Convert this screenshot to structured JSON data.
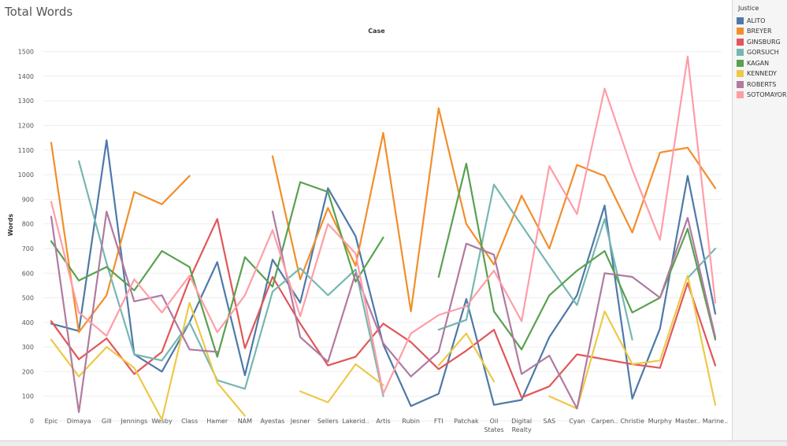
{
  "page_title": "Total Words",
  "legend": {
    "title": "Justice"
  },
  "colors": {
    "ALITO": "#4e79a7",
    "BREYER": "#f28e2b",
    "GINSBURG": "#e15759",
    "GORSUCH": "#76b7b2",
    "KAGAN": "#59a14f",
    "KENNEDY": "#edc948",
    "ROBERTS": "#b07aa1",
    "SOTOMAYOR": "#ff9da7"
  },
  "chart_data": {
    "type": "line",
    "title": "Case",
    "xlabel": "",
    "ylabel": "Words",
    "ylim": [
      0,
      1550
    ],
    "yticks": [
      0,
      100,
      200,
      300,
      400,
      500,
      600,
      700,
      800,
      900,
      1000,
      1100,
      1200,
      1300,
      1400,
      1500
    ],
    "grid": true,
    "legend_position": "right",
    "categories": [
      "Epic",
      "Dimaya",
      "Gill",
      "Jennings",
      "Wesby",
      "Class",
      "Hamer",
      "NAM",
      "Ayestas",
      "Jesner",
      "Sellers",
      "Lakerid..",
      "Artis",
      "Rubin",
      "FTI",
      "Patchak",
      "Oil States",
      "Digital Realty",
      "SAS",
      "Cyan",
      "Carpen..",
      "Christie",
      "Murphy",
      "Master..",
      "Marine.."
    ],
    "series": [
      {
        "name": "ALITO",
        "values": [
          395,
          365,
          1140,
          270,
          200,
          400,
          645,
          185,
          655,
          480,
          945,
          750,
          310,
          60,
          110,
          495,
          65,
          85,
          340,
          510,
          875,
          90,
          375,
          995,
          435
        ]
      },
      {
        "name": "BREYER",
        "values": [
          1130,
          360,
          510,
          930,
          880,
          995,
          null,
          null,
          null,
          null,
          null,
          null,
          null,
          null,
          null,
          null,
          null,
          null,
          null,
          null,
          null,
          null,
          null,
          null,
          null
        ]
      },
      {
        "name": "BREYER",
        "values": [
          null,
          null,
          null,
          null,
          null,
          null,
          null,
          null,
          1075,
          575,
          865,
          630,
          1170,
          445,
          1270,
          800,
          635,
          915,
          700,
          1040,
          995,
          765,
          1090,
          1110,
          945
        ]
      },
      {
        "name": "GINSBURG",
        "values": [
          405,
          250,
          335,
          190,
          280,
          575,
          820,
          295,
          585,
          395,
          225,
          260,
          395,
          320,
          210,
          285,
          370,
          95,
          140,
          270,
          250,
          230,
          215,
          560,
          225
        ]
      },
      {
        "name": "GORSUCH",
        "values": [
          null,
          1055,
          640,
          270,
          245,
          400,
          165,
          130,
          525,
          620,
          510,
          615,
          100,
          null,
          null,
          null,
          null,
          null,
          null,
          null,
          null,
          null,
          null,
          null,
          null
        ]
      },
      {
        "name": "GORSUCH",
        "values": [
          null,
          null,
          null,
          null,
          null,
          null,
          null,
          null,
          null,
          null,
          null,
          null,
          null,
          null,
          370,
          410,
          960,
          795,
          630,
          470,
          820,
          330,
          null,
          null,
          null
        ]
      },
      {
        "name": "GORSUCH",
        "values": [
          null,
          null,
          null,
          null,
          null,
          null,
          null,
          null,
          null,
          null,
          null,
          null,
          null,
          null,
          null,
          null,
          null,
          null,
          null,
          null,
          null,
          null,
          null,
          580,
          700
        ]
      },
      {
        "name": "KAGAN",
        "values": [
          730,
          570,
          625,
          530,
          690,
          625,
          260,
          665,
          545,
          970,
          930,
          565,
          745,
          null,
          null,
          null,
          null,
          null,
          null,
          null,
          null,
          null,
          null,
          null,
          null
        ]
      },
      {
        "name": "KAGAN",
        "values": [
          null,
          null,
          null,
          null,
          null,
          null,
          null,
          null,
          null,
          null,
          null,
          null,
          null,
          null,
          585,
          1045,
          445,
          290,
          510,
          610,
          690,
          440,
          500,
          780,
          330
        ]
      },
      {
        "name": "KENNEDY",
        "values": [
          330,
          180,
          300,
          215,
          5,
          480,
          155,
          20,
          null,
          null,
          null,
          null,
          null,
          null,
          null,
          null,
          null,
          null,
          null,
          null,
          null,
          null,
          null,
          null,
          null
        ]
      },
      {
        "name": "KENNEDY",
        "values": [
          null,
          null,
          null,
          null,
          null,
          null,
          null,
          null,
          null,
          120,
          75,
          230,
          145,
          null,
          null,
          null,
          null,
          null,
          null,
          null,
          null,
          null,
          null,
          null,
          null
        ]
      },
      {
        "name": "KENNEDY",
        "values": [
          null,
          null,
          null,
          null,
          null,
          null,
          null,
          null,
          null,
          null,
          null,
          null,
          null,
          null,
          225,
          355,
          160,
          null,
          null,
          null,
          null,
          null,
          null,
          null,
          null
        ]
      },
      {
        "name": "KENNEDY",
        "values": [
          null,
          null,
          null,
          null,
          null,
          null,
          null,
          null,
          null,
          null,
          null,
          null,
          null,
          null,
          null,
          null,
          null,
          null,
          100,
          50,
          445,
          230,
          245,
          590,
          65
        ]
      },
      {
        "name": "ROBERTS",
        "values": [
          830,
          35,
          850,
          485,
          510,
          290,
          280,
          null,
          null,
          null,
          null,
          null,
          null,
          null,
          null,
          null,
          null,
          null,
          null,
          null,
          null,
          null,
          null,
          null,
          null
        ]
      },
      {
        "name": "ROBERTS",
        "values": [
          null,
          null,
          null,
          null,
          null,
          null,
          null,
          null,
          850,
          340,
          240,
          600,
          315,
          180,
          280,
          720,
          675,
          190,
          265,
          50,
          600,
          585,
          500,
          825,
          340
        ]
      },
      {
        "name": "SOTOMAYOR",
        "values": [
          890,
          440,
          345,
          575,
          440,
          590,
          360,
          510,
          775,
          425,
          800,
          680,
          110,
          355,
          430,
          465,
          610,
          405,
          1035,
          840,
          1350,
          1020,
          735,
          1480,
          480
        ]
      }
    ]
  }
}
